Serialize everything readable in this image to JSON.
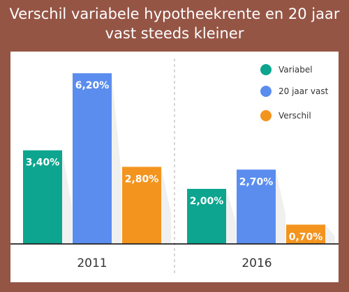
{
  "title_line1": "Verschil variabele hypotheekrente en 20 jaar",
  "title_line2": "vast steeds kleiner",
  "colors": {
    "background": "#955545",
    "variabel": "#0da58f",
    "vast20": "#5b8def",
    "verschil": "#f3941e"
  },
  "chart_data": {
    "type": "bar",
    "categories": [
      "2011",
      "2016"
    ],
    "series": [
      {
        "name": "Variabel",
        "values": [
          3.4,
          2.0
        ],
        "labels": [
          "3,40%",
          "2,00%"
        ],
        "color": "#0da58f"
      },
      {
        "name": "20 jaar vast",
        "values": [
          6.2,
          2.7
        ],
        "labels": [
          "6,20%",
          "2,70%"
        ],
        "color": "#5b8def"
      },
      {
        "name": "Verschil",
        "values": [
          2.8,
          0.7
        ],
        "labels": [
          "2,80%",
          "0,70%"
        ],
        "color": "#f3941e"
      }
    ],
    "legend_position": "top-right",
    "grid": false
  }
}
